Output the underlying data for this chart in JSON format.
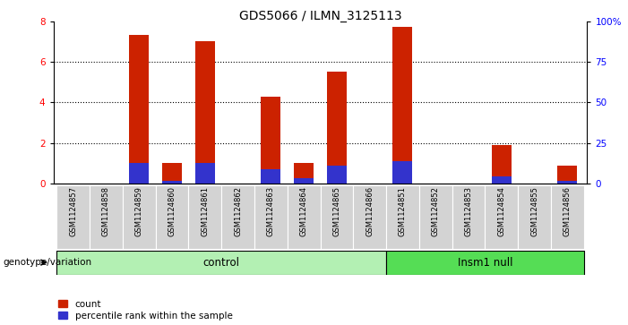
{
  "title": "GDS5066 / ILMN_3125113",
  "samples": [
    "GSM1124857",
    "GSM1124858",
    "GSM1124859",
    "GSM1124860",
    "GSM1124861",
    "GSM1124862",
    "GSM1124863",
    "GSM1124864",
    "GSM1124865",
    "GSM1124866",
    "GSM1124851",
    "GSM1124852",
    "GSM1124853",
    "GSM1124854",
    "GSM1124855",
    "GSM1124856"
  ],
  "count_values": [
    0,
    0,
    7.3,
    1.0,
    7.0,
    0,
    4.3,
    1.0,
    5.5,
    0,
    7.7,
    0,
    0,
    1.9,
    0,
    0.9
  ],
  "percentile_values": [
    0,
    0,
    1.0,
    0.15,
    1.0,
    0,
    0.7,
    0.25,
    0.9,
    0,
    1.1,
    0,
    0,
    0.35,
    0,
    0.15
  ],
  "control_count": 10,
  "insm1_label": "Insm1 null",
  "control_label": "control",
  "ylim_left": [
    0,
    8
  ],
  "ylim_right": [
    0,
    100
  ],
  "yticks_left": [
    0,
    2,
    4,
    6,
    8
  ],
  "yticks_right": [
    0,
    25,
    50,
    75,
    100
  ],
  "ytick_labels_right": [
    "0",
    "25",
    "50",
    "75",
    "100%"
  ],
  "bar_color_red": "#cc2200",
  "bar_color_blue": "#3333cc",
  "bar_width": 0.6,
  "bg_color": "#ffffff",
  "genotype_label": "genotype/variation",
  "legend_count": "count",
  "legend_percentile": "percentile rank within the sample",
  "tick_bg_color": "#d3d3d3",
  "group_bg_light": "#b3f0b3",
  "group_bg_dark": "#55dd55",
  "title_fontsize": 10,
  "label_fontsize": 6,
  "group_fontsize": 8.5
}
